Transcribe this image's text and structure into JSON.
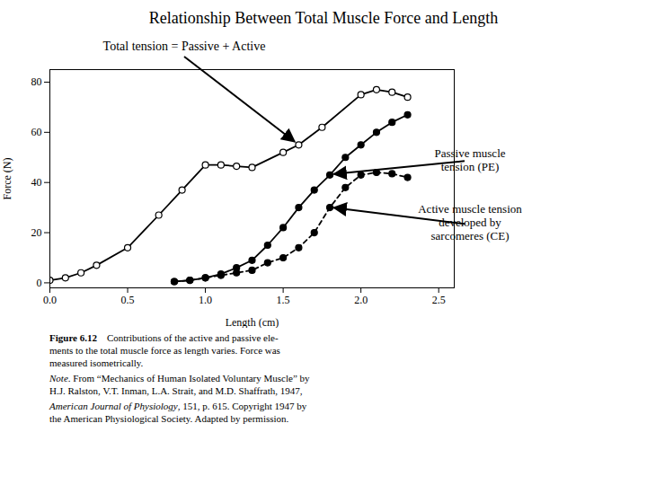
{
  "chart_data": {
    "type": "line",
    "title": "Relationship Between Total Muscle Force and Length",
    "subtitle": "Total tension = Passive + Active",
    "xlabel": "Length (cm)",
    "ylabel": "Force (N)",
    "xlim": [
      0.0,
      2.6
    ],
    "ylim": [
      -2,
      85
    ],
    "xticks": [
      {
        "value": 0.0,
        "label": "0.0"
      },
      0.5,
      {
        "value": 1.0,
        "label": "1.0"
      },
      1.5,
      {
        "value": 2.0,
        "label": "2.0"
      },
      2.5
    ],
    "yticks": [
      0,
      20,
      40,
      60,
      80
    ],
    "grid": false,
    "series": [
      {
        "x": [
          0.0,
          0.1,
          0.2,
          0.3,
          0.5,
          0.7,
          0.85,
          1.0,
          1.1,
          1.2,
          1.3,
          1.5,
          1.6,
          1.75,
          2.0,
          2.1,
          2.2,
          2.3
        ],
        "values": [
          1.0,
          2.0,
          4.0,
          7.0,
          14.0,
          27.0,
          37.0,
          47.0,
          47.0,
          46.5,
          46.0,
          52.0,
          55.0,
          62.0,
          75.0,
          77.0,
          76.0,
          74.0
        ],
        "color": "#000000",
        "line_style": "solid",
        "marker": "open_circle"
      },
      {
        "x": [
          0.8,
          0.9,
          1.0,
          1.1,
          1.2,
          1.3,
          1.4,
          1.5,
          1.6,
          1.7,
          1.8,
          1.9,
          2.0,
          2.1,
          2.2,
          2.3
        ],
        "values": [
          0.5,
          1.0,
          2.0,
          3.0,
          4.0,
          5.0,
          8.0,
          10.0,
          14.0,
          20.0,
          30.0,
          38.0,
          43.0,
          44.0,
          43.5,
          42.0
        ],
        "color": "#000000",
        "line_style": "dashed",
        "marker": "circle",
        "annotation": "Active muscle tension\ndeveloped by\nsarcomeres (CE)"
      },
      {
        "x": [
          0.8,
          0.9,
          1.0,
          1.1,
          1.2,
          1.3,
          1.4,
          1.5,
          1.6,
          1.7,
          1.8,
          1.9,
          2.0,
          2.1,
          2.2,
          2.3
        ],
        "values": [
          0.5,
          1.0,
          2.0,
          3.5,
          6.0,
          9.0,
          15.0,
          22.0,
          30.0,
          37.0,
          43.0,
          50.0,
          55.0,
          60.0,
          64.0,
          67.0
        ],
        "color": "#000000",
        "line_style": "solid",
        "marker": "circle",
        "annotation": "Passive muscle\ntension (PE)"
      }
    ],
    "caption": [
      [
        {
          "text": "Figure 6.12",
          "style": "bold"
        },
        {
          "text": "    Contributions of the active and passive ele-\nments to the total muscle force as length varies. Force was\nmeasured isometrically.",
          "style": "normal"
        }
      ],
      [
        {
          "text": "Note",
          "style": "italic"
        },
        {
          "text": ". From “Mechanics of Human Isolated Voluntary Muscle” by\nH.J. Ralston, V.T. Inman, L.A. Strait, and M.D. Shaffrath, 1947,",
          "style": "normal"
        }
      ],
      [
        {
          "text": "American Journal of Physiology",
          "style": "italic"
        },
        {
          "text": ", 151, p. 615. Copyright 1947 by\nthe American Physiological Society. Adapted by permission.",
          "style": "normal"
        }
      ]
    ]
  }
}
